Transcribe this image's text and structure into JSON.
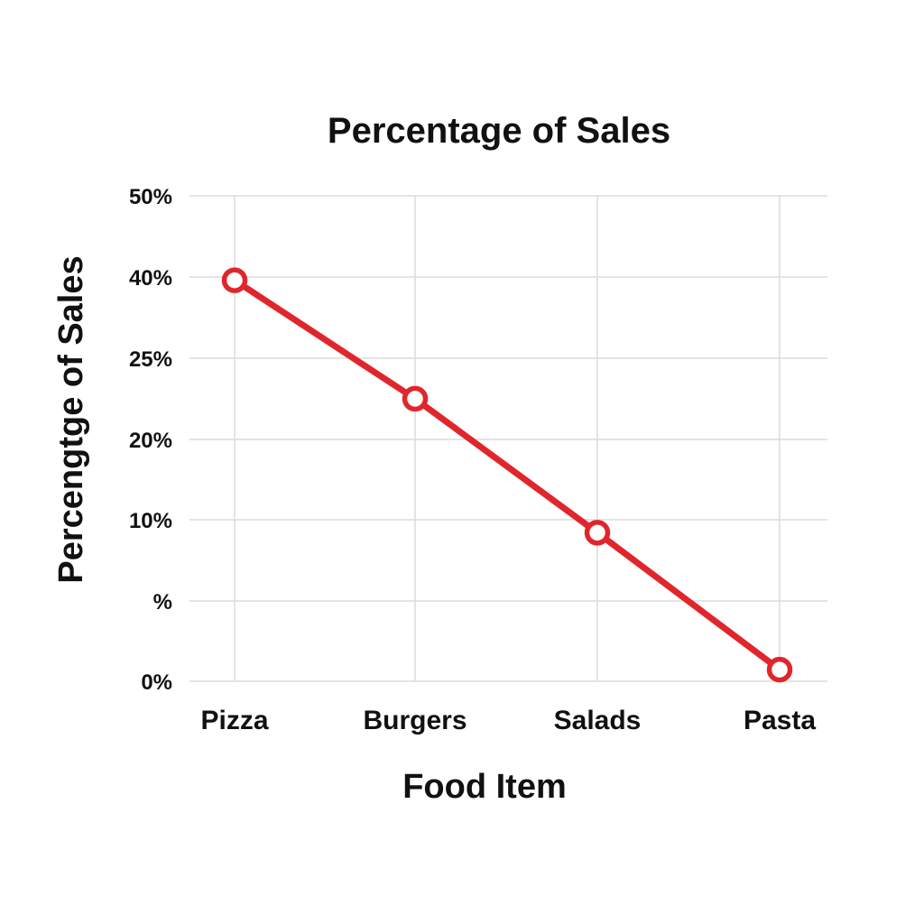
{
  "chart_data": {
    "type": "line",
    "title": "Percentage of Sales",
    "xlabel": "Food Item",
    "ylabel": "Percengtge of Sales",
    "categories": [
      "Pizza",
      "Burgers",
      "Salads",
      "Pasta"
    ],
    "y_tick_labels": [
      "0%",
      "%",
      "10%",
      "20%",
      "25%",
      "40%",
      "50%"
    ],
    "series": [
      {
        "values": [
          41.3,
          29.1,
          15.3,
          1.2
        ],
        "color": "#e0262c"
      }
    ],
    "ylim": [
      0,
      50
    ],
    "grid": true,
    "legend": "none"
  }
}
